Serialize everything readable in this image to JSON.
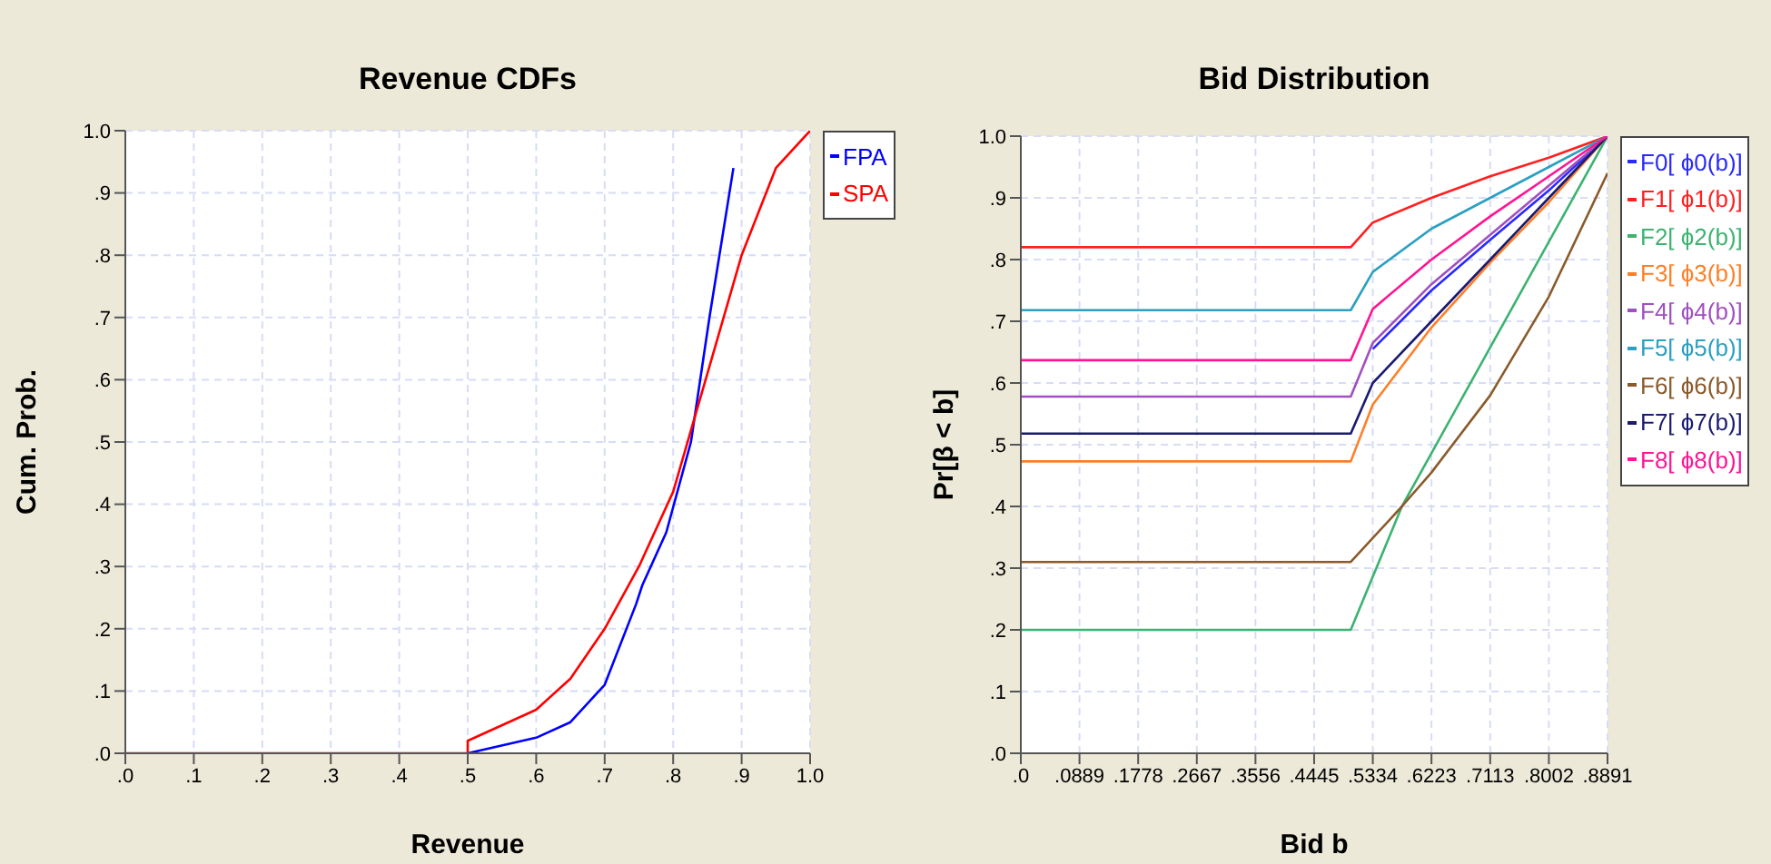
{
  "chart_data": [
    {
      "type": "line",
      "title": "Revenue CDFs",
      "xlabel": "Revenue",
      "ylabel": "Cum. Prob.",
      "xlim": [
        0,
        1
      ],
      "ylim": [
        0,
        1
      ],
      "xticks": [
        {
          "value": 0,
          "label": ".0"
        },
        {
          "value": 0.1,
          "label": ".1"
        },
        {
          "value": 0.2,
          "label": ".2"
        },
        {
          "value": 0.3,
          "label": ".3"
        },
        {
          "value": 0.4,
          "label": ".4"
        },
        {
          "value": 0.5,
          "label": ".5"
        },
        {
          "value": 0.6,
          "label": ".6"
        },
        {
          "value": 0.7,
          "label": ".7"
        },
        {
          "value": 0.8,
          "label": ".8"
        },
        {
          "value": 0.9,
          "label": ".9"
        },
        {
          "value": 1,
          "label": "1.0"
        }
      ],
      "yticks": [
        {
          "value": 0,
          "label": ".0"
        },
        {
          "value": 0.1,
          "label": ".1"
        },
        {
          "value": 0.2,
          "label": ".2"
        },
        {
          "value": 0.3,
          "label": ".3"
        },
        {
          "value": 0.4,
          "label": ".4"
        },
        {
          "value": 0.5,
          "label": ".5"
        },
        {
          "value": 0.6,
          "label": ".6"
        },
        {
          "value": 0.7,
          "label": ".7"
        },
        {
          "value": 0.8,
          "label": ".8"
        },
        {
          "value": 0.9,
          "label": ".9"
        },
        {
          "value": 1,
          "label": "1.0"
        }
      ],
      "grid": true,
      "legend": "top right",
      "marker": "none",
      "series": [
        {
          "name": "FPA",
          "color": "#0000ff",
          "x": [
            0.5,
            0.6,
            0.65,
            0.7,
            0.746,
            0.755,
            0.79,
            0.826,
            0.853,
            0.888
          ],
          "values": [
            0,
            0.025,
            0.05,
            0.11,
            0.24,
            0.27,
            0.355,
            0.5,
            0.7,
            0.94
          ]
        },
        {
          "name": "SPA",
          "color": "#ff0000",
          "x": [
            0,
            0.5,
            0.5,
            0.6,
            0.65,
            0.7,
            0.75,
            0.8,
            0.85,
            0.9,
            0.95,
            1
          ],
          "values": [
            0,
            0,
            0.02,
            0.07,
            0.12,
            0.2,
            0.3,
            0.42,
            0.61,
            0.8,
            0.94,
            1
          ]
        }
      ]
    },
    {
      "type": "line",
      "title": "Bid Distribution",
      "xlabel": "Bid b",
      "ylabel": "Pr[β < b]",
      "xlim": [
        0,
        0.8891
      ],
      "ylim": [
        0,
        1
      ],
      "xticks": [
        {
          "value": 0,
          "label": ".0"
        },
        {
          "value": 0.0889,
          "label": ".0889"
        },
        {
          "value": 0.1778,
          "label": ".1778"
        },
        {
          "value": 0.2667,
          "label": ".2667"
        },
        {
          "value": 0.3556,
          "label": ".3556"
        },
        {
          "value": 0.4445,
          "label": ".4445"
        },
        {
          "value": 0.5334,
          "label": ".5334"
        },
        {
          "value": 0.6223,
          "label": ".6223"
        },
        {
          "value": 0.7113,
          "label": ".7113"
        },
        {
          "value": 0.8002,
          "label": ".8002"
        },
        {
          "value": 0.8891,
          "label": ".8891"
        }
      ],
      "yticks": [
        {
          "value": 0,
          "label": ".0"
        },
        {
          "value": 0.1,
          "label": ".1"
        },
        {
          "value": 0.2,
          "label": ".2"
        },
        {
          "value": 0.3,
          "label": ".3"
        },
        {
          "value": 0.4,
          "label": ".4"
        },
        {
          "value": 0.5,
          "label": ".5"
        },
        {
          "value": 0.6,
          "label": ".6"
        },
        {
          "value": 0.7,
          "label": ".7"
        },
        {
          "value": 0.8,
          "label": ".8"
        },
        {
          "value": 0.9,
          "label": ".9"
        },
        {
          "value": 1,
          "label": "1.0"
        }
      ],
      "grid": true,
      "legend": "top right",
      "marker": "none",
      "series": [
        {
          "name": "F0[ ϕ0(b)]",
          "color": "#2a2aff",
          "x": [
            0.5334,
            0.6223,
            0.7113,
            0.8002,
            0.8891
          ],
          "values": [
            0.655,
            0.75,
            0.832,
            0.912,
            1
          ]
        },
        {
          "name": "F1[ ϕ1(b)]",
          "color": "#ff2020",
          "x": [
            0,
            0.5,
            0.5334,
            0.6223,
            0.7113,
            0.8002,
            0.8891
          ],
          "values": [
            0.82,
            0.82,
            0.86,
            0.9,
            0.935,
            0.965,
            1
          ]
        },
        {
          "name": "F2[ ϕ2(b)]",
          "color": "#3cb371",
          "x": [
            0,
            0.5,
            0.5775,
            0.8891
          ],
          "values": [
            0.2,
            0.2,
            0.4,
            1
          ]
        },
        {
          "name": "F3[ ϕ3(b)]",
          "color": "#ff7f27",
          "x": [
            0,
            0.5,
            0.5334,
            0.6223,
            0.7113,
            0.8002,
            0.8891
          ],
          "values": [
            0.473,
            0.473,
            0.565,
            0.69,
            0.795,
            0.893,
            1
          ]
        },
        {
          "name": "F4[ ϕ4(b)]",
          "color": "#a050c0",
          "x": [
            0,
            0.5,
            0.5334,
            0.6223,
            0.7113,
            0.8002,
            0.8891
          ],
          "values": [
            0.578,
            0.578,
            0.665,
            0.76,
            0.84,
            0.92,
            1
          ]
        },
        {
          "name": "F5[ ϕ5(b)]",
          "color": "#2ba0c0",
          "x": [
            0,
            0.5,
            0.5334,
            0.6223,
            0.7113,
            0.8002,
            0.8891
          ],
          "values": [
            0.718,
            0.718,
            0.78,
            0.85,
            0.9,
            0.95,
            1
          ]
        },
        {
          "name": "F6[ ϕ6(b)]",
          "color": "#8b5a2b",
          "x": [
            0,
            0.5,
            0.5775,
            0.6223,
            0.7113,
            0.8002,
            0.8891
          ],
          "values": [
            0.31,
            0.31,
            0.4,
            0.455,
            0.58,
            0.74,
            0.94
          ]
        },
        {
          "name": "F7[ ϕ7(b)]",
          "color": "#1a1a70",
          "x": [
            0,
            0.5,
            0.5334,
            0.6223,
            0.7113,
            0.8002,
            0.8891
          ],
          "values": [
            0.518,
            0.518,
            0.6,
            0.7,
            0.8,
            0.9,
            1
          ]
        },
        {
          "name": "F8[ ϕ8(b)]",
          "color": "#ff1493",
          "x": [
            0,
            0.5,
            0.5334,
            0.6223,
            0.7113,
            0.8002,
            0.8891
          ],
          "values": [
            0.637,
            0.637,
            0.72,
            0.8,
            0.87,
            0.935,
            1
          ]
        }
      ]
    }
  ]
}
